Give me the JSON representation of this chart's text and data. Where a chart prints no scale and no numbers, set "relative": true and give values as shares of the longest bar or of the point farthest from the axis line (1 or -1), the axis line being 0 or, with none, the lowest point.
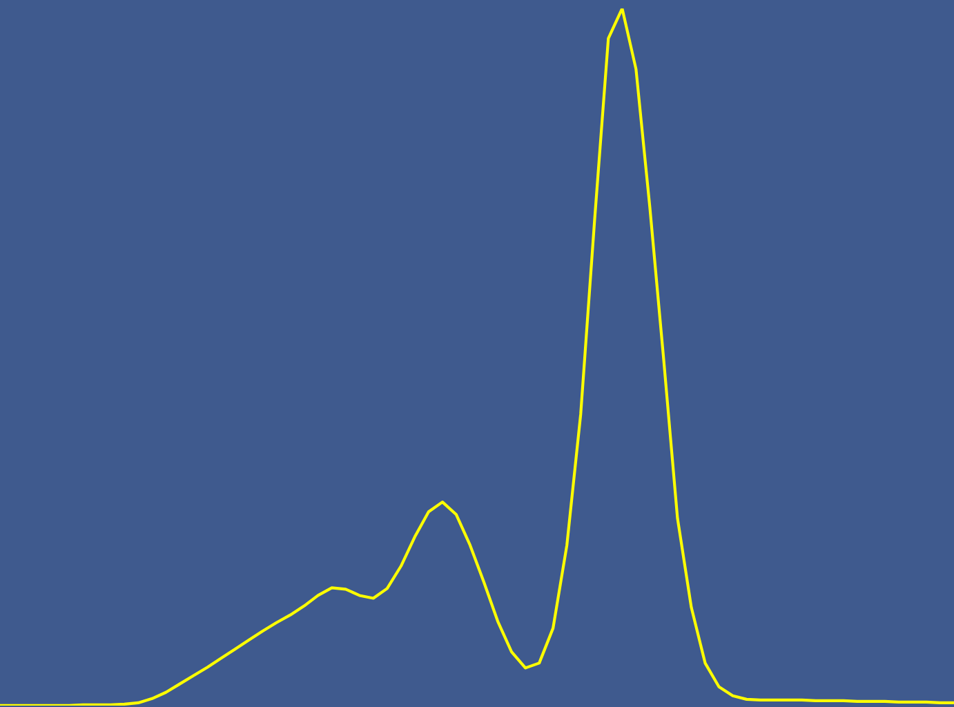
{
  "chart_data": {
    "type": "line",
    "relative": true,
    "grid": false,
    "legend": false,
    "marker": "none",
    "line_style": "solid",
    "categories": [
      null,
      null,
      null,
      null,
      null,
      null,
      null,
      null,
      null,
      null,
      null,
      null,
      null,
      null,
      null,
      null,
      null,
      null,
      null,
      null,
      null,
      null,
      null,
      null,
      null,
      null,
      null,
      null,
      null,
      null,
      null,
      null,
      null,
      null,
      null,
      null,
      null,
      null,
      null,
      null,
      null,
      null,
      null,
      null,
      null,
      null,
      null,
      null,
      null,
      null,
      null,
      null,
      null,
      null,
      null,
      null,
      null,
      null,
      null,
      null,
      null,
      null,
      null,
      null,
      null,
      null,
      null,
      null,
      null,
      null
    ],
    "series": [
      {
        "color": "#ffff00",
        "values": [
          0,
          0,
          0,
          0,
          0,
          0,
          0.001,
          0.001,
          0.001,
          0.002,
          0.004,
          0.01,
          0.019,
          0.031,
          0.043,
          0.055,
          0.068,
          0.081,
          0.094,
          0.107,
          0.119,
          0.13,
          0.143,
          0.158,
          0.169,
          0.167,
          0.158,
          0.154,
          0.168,
          0.2,
          0.242,
          0.278,
          0.292,
          0.274,
          0.23,
          0.177,
          0.121,
          0.077,
          0.054,
          0.061,
          0.111,
          0.23,
          0.418,
          0.695,
          0.957,
          1,
          0.913,
          0.715,
          0.497,
          0.269,
          0.141,
          0.061,
          0.027,
          0.014,
          0.009,
          0.008,
          0.008,
          0.008,
          0.008,
          0.007,
          0.007,
          0.007,
          0.006,
          0.006,
          0.006,
          0.005,
          0.005,
          0.005,
          0.004,
          0.004
        ]
      }
    ]
  }
}
